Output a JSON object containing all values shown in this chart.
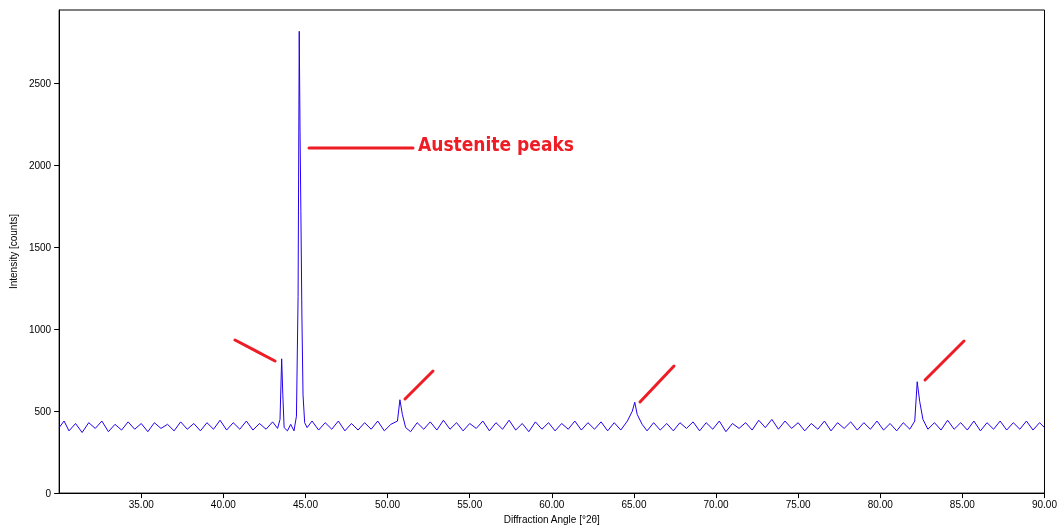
{
  "chart_data": {
    "type": "line",
    "xlabel": "Diffraction Angle [°2θ]",
    "ylabel": "Intensity [counts]",
    "annotations": [
      "Austenite peaks"
    ],
    "xlim": [
      30,
      90
    ],
    "ylim": [
      0,
      2950
    ],
    "xticks": [
      {
        "value": 35,
        "label": "35.00"
      },
      {
        "value": 40,
        "label": "40.00"
      },
      {
        "value": 45,
        "label": "45.00"
      },
      {
        "value": 50,
        "label": "50.00"
      },
      {
        "value": 55,
        "label": "55.00"
      },
      {
        "value": 60,
        "label": "60.00"
      },
      {
        "value": 65,
        "label": "65.00"
      },
      {
        "value": 70,
        "label": "70.00"
      },
      {
        "value": 75,
        "label": "75.00"
      },
      {
        "value": 80,
        "label": "80.00"
      },
      {
        "value": 85,
        "label": "85.00"
      },
      {
        "value": 90,
        "label": "90.00"
      }
    ],
    "yticks": [
      0,
      500,
      1000,
      1500,
      2000,
      2500
    ],
    "grid": false,
    "marker": "none",
    "line_style": "solid",
    "series": [
      {
        "color": "#2200ee",
        "x": [
          30.0,
          30.3,
          30.6,
          31.0,
          31.4,
          31.8,
          32.2,
          32.6,
          33.0,
          33.4,
          33.8,
          34.2,
          34.6,
          35.0,
          35.4,
          35.8,
          36.2,
          36.6,
          37.0,
          37.4,
          37.8,
          38.2,
          38.6,
          39.0,
          39.4,
          39.8,
          40.2,
          40.6,
          41.0,
          41.4,
          41.8,
          42.2,
          42.6,
          43.0,
          43.3,
          43.45,
          43.55,
          43.62,
          43.7,
          43.9,
          44.1,
          44.3,
          44.45,
          44.55,
          44.62,
          44.67,
          44.72,
          44.78,
          44.85,
          44.95,
          45.1,
          45.4,
          45.8,
          46.2,
          46.6,
          47.0,
          47.4,
          47.8,
          48.2,
          48.6,
          49.0,
          49.4,
          49.8,
          50.2,
          50.6,
          50.75,
          50.9,
          51.1,
          51.4,
          51.8,
          52.2,
          52.6,
          53.0,
          53.4,
          53.8,
          54.2,
          54.6,
          55.0,
          55.4,
          55.8,
          56.2,
          56.6,
          57.0,
          57.4,
          57.8,
          58.2,
          58.6,
          59.0,
          59.4,
          59.8,
          60.2,
          60.6,
          61.0,
          61.4,
          61.8,
          62.2,
          62.6,
          63.0,
          63.4,
          63.8,
          64.2,
          64.6,
          64.9,
          65.05,
          65.2,
          65.5,
          65.8,
          66.2,
          66.6,
          67.0,
          67.4,
          67.8,
          68.2,
          68.6,
          69.0,
          69.4,
          69.8,
          70.2,
          70.6,
          71.0,
          71.4,
          71.8,
          72.2,
          72.6,
          73.0,
          73.4,
          73.8,
          74.2,
          74.6,
          75.0,
          75.4,
          75.8,
          76.2,
          76.6,
          77.0,
          77.4,
          77.8,
          78.2,
          78.6,
          79.0,
          79.4,
          79.8,
          80.2,
          80.6,
          81.0,
          81.4,
          81.8,
          82.1,
          82.25,
          82.4,
          82.6,
          82.9,
          83.3,
          83.7,
          84.1,
          84.5,
          84.9,
          85.3,
          85.7,
          86.1,
          86.5,
          86.9,
          87.3,
          87.7,
          88.1,
          88.5,
          88.9,
          89.3,
          89.7,
          90.0
        ],
        "values": [
          400,
          440,
          380,
          425,
          370,
          430,
          395,
          440,
          375,
          420,
          385,
          435,
          390,
          425,
          375,
          430,
          395,
          420,
          380,
          435,
          390,
          425,
          380,
          430,
          390,
          445,
          385,
          430,
          390,
          440,
          385,
          425,
          390,
          435,
          395,
          450,
          820,
          600,
          400,
          380,
          420,
          380,
          470,
          1200,
          2820,
          2200,
          1720,
          1100,
          600,
          430,
          400,
          440,
          385,
          430,
          390,
          440,
          380,
          425,
          385,
          430,
          390,
          440,
          380,
          420,
          440,
          570,
          480,
          400,
          375,
          430,
          390,
          435,
          385,
          445,
          390,
          430,
          380,
          425,
          395,
          440,
          380,
          430,
          390,
          445,
          385,
          425,
          375,
          435,
          390,
          430,
          380,
          425,
          390,
          440,
          385,
          430,
          390,
          435,
          380,
          430,
          385,
          440,
          500,
          555,
          480,
          420,
          380,
          430,
          385,
          425,
          380,
          430,
          395,
          435,
          380,
          430,
          390,
          440,
          375,
          425,
          395,
          430,
          385,
          445,
          400,
          450,
          390,
          440,
          395,
          430,
          380,
          425,
          390,
          440,
          380,
          430,
          395,
          435,
          385,
          430,
          390,
          440,
          385,
          425,
          380,
          430,
          390,
          440,
          680,
          560,
          450,
          390,
          430,
          385,
          445,
          390,
          430,
          385,
          440,
          380,
          430,
          390,
          440,
          385,
          430,
          390,
          440,
          385,
          430,
          400
        ]
      }
    ]
  }
}
